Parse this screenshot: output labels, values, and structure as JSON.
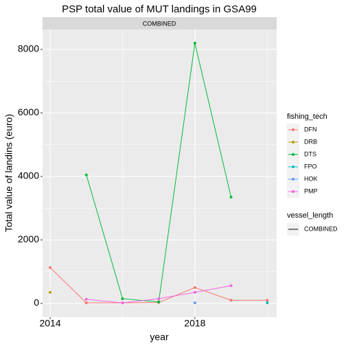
{
  "chart_data": {
    "type": "line",
    "title": "PSP total value of MUT landings in GSA99",
    "facet_label": "COMBINED",
    "xlabel": "year",
    "ylabel": "Total value of landins (euro)",
    "x": [
      2014,
      2015,
      2016,
      2017,
      2018,
      2019,
      2020
    ],
    "xlim": [
      2013.79,
      2020.26
    ],
    "xticks": [
      2014,
      2018
    ],
    "ylim": [
      -432,
      8627
    ],
    "yticks": [
      0,
      2000,
      4000,
      6000,
      8000
    ],
    "grid": true,
    "legend_title": "fishing_tech",
    "legend_position": "right",
    "series": [
      {
        "name": "DFN",
        "color": "#F8766D",
        "values": [
          1130,
          20,
          20,
          30,
          500,
          100,
          100
        ]
      },
      {
        "name": "DRB",
        "color": "#B79F00",
        "values": [
          350,
          null,
          null,
          null,
          null,
          null,
          null
        ]
      },
      {
        "name": "DTS",
        "color": "#00BA38",
        "values": [
          null,
          4050,
          150,
          50,
          8200,
          3350,
          null
        ]
      },
      {
        "name": "FPO",
        "color": "#00BFC4",
        "values": [
          null,
          null,
          null,
          null,
          null,
          null,
          20
        ]
      },
      {
        "name": "HOK",
        "color": "#619CFF",
        "values": [
          null,
          null,
          null,
          null,
          20,
          null,
          null
        ]
      },
      {
        "name": "PMP",
        "color": "#F564E3",
        "values": [
          null,
          130,
          20,
          150,
          350,
          560,
          null
        ]
      }
    ],
    "legend2": {
      "title": "vessel_length",
      "entries": [
        "COMBINED"
      ],
      "color": "#000000"
    }
  }
}
